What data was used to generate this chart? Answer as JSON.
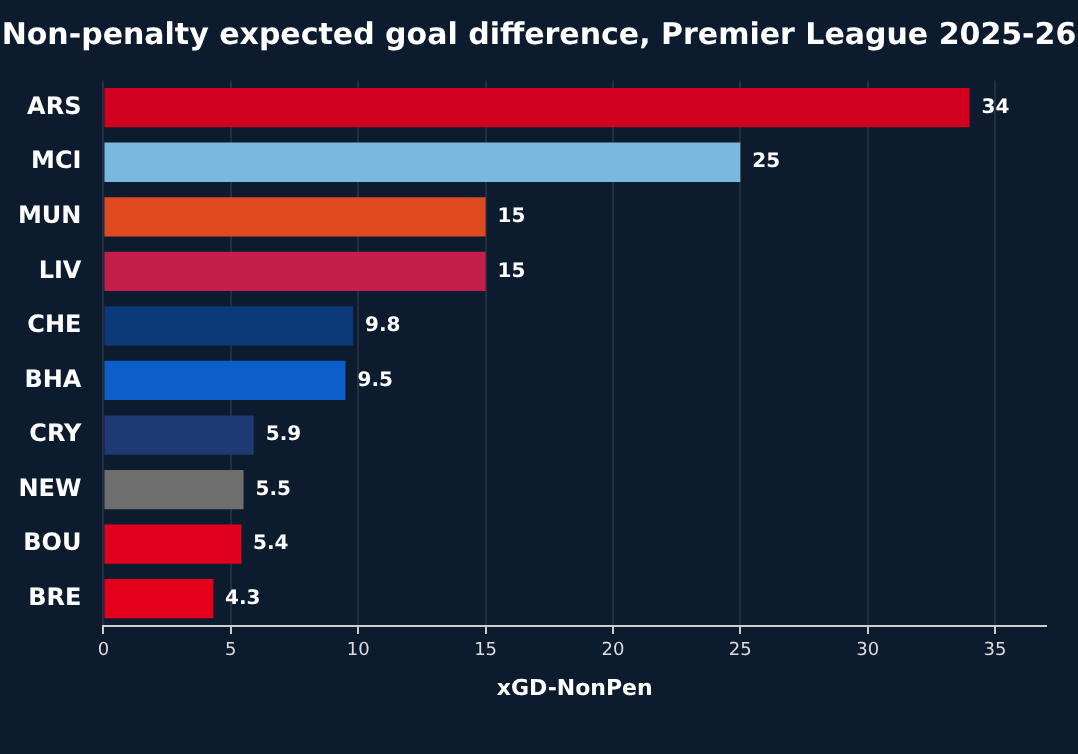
{
  "chart_data": {
    "type": "bar",
    "orientation": "horizontal",
    "title": "Non-penalty expected goal difference, Premier League 2025-26",
    "xlabel": "xGD-NonPen",
    "categories": [
      "ARS",
      "MCI",
      "MUN",
      "LIV",
      "CHE",
      "BHA",
      "CRY",
      "NEW",
      "BOU",
      "BRE"
    ],
    "values": [
      34,
      25,
      15,
      15,
      9.8,
      9.5,
      5.9,
      5.5,
      5.4,
      4.3
    ],
    "colors": [
      "#d20020",
      "#7ab8e0",
      "#e04a20",
      "#c41e4a",
      "#0c3a78",
      "#0c5ec8",
      "#1f3a72",
      "#6e6e6e",
      "#e20020",
      "#e4001c"
    ],
    "xlim": [
      0,
      37
    ],
    "xticks": [
      0,
      5,
      10,
      15,
      20,
      25,
      30,
      35
    ],
    "grid": "x",
    "data_labels": true
  }
}
